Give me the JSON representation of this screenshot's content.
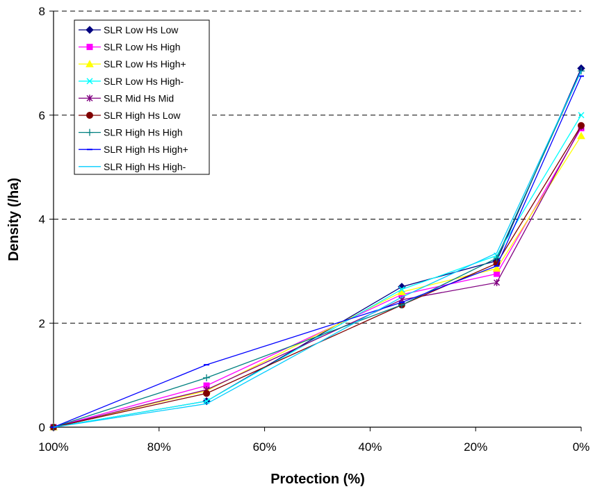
{
  "chart_data": {
    "type": "line",
    "title": "",
    "xlabel": "Protection (%)",
    "ylabel": "Density (/ha)",
    "x": [
      100,
      71,
      34,
      16,
      0
    ],
    "xlim": [
      100,
      0
    ],
    "ylim": [
      0,
      8
    ],
    "x_ticks": [
      100,
      80,
      60,
      40,
      20,
      0
    ],
    "x_tick_labels": [
      "100%",
      "80%",
      "60%",
      "40%",
      "20%",
      "0%"
    ],
    "y_ticks": [
      0,
      2,
      4,
      6,
      8
    ],
    "y_tick_labels": [
      "0",
      "2",
      "4",
      "6",
      "8"
    ],
    "grid": "horizontal-dashed",
    "legend_position": "top-left",
    "series": [
      {
        "name": "SLR Low Hs Low",
        "values": [
          0,
          0.5,
          2.7,
          3.2,
          6.9
        ],
        "color": "#000080",
        "marker": "diamond"
      },
      {
        "name": "SLR Low Hs High",
        "values": [
          0,
          0.8,
          2.55,
          2.95,
          5.75
        ],
        "color": "#FF00FF",
        "marker": "square"
      },
      {
        "name": "SLR Low Hs High+",
        "values": [
          0,
          0.7,
          2.6,
          3.05,
          5.6
        ],
        "color": "#FFFF00",
        "marker": "triangle"
      },
      {
        "name": "SLR Low Hs High-",
        "values": [
          0,
          0.5,
          2.65,
          3.3,
          6.0
        ],
        "color": "#00FFFF",
        "marker": "x"
      },
      {
        "name": "SLR Mid Hs Mid",
        "values": [
          0,
          0.72,
          2.45,
          2.78,
          5.78
        ],
        "color": "#800080",
        "marker": "star"
      },
      {
        "name": "SLR High Hs Low",
        "values": [
          0,
          0.65,
          2.35,
          3.15,
          5.8
        ],
        "color": "#800000",
        "marker": "circle"
      },
      {
        "name": "SLR High Hs High",
        "values": [
          0,
          0.95,
          2.35,
          3.25,
          6.85
        ],
        "color": "#008080",
        "marker": "plus"
      },
      {
        "name": "SLR High Hs High+",
        "values": [
          0,
          1.2,
          2.4,
          3.1,
          6.75
        ],
        "color": "#0000FF",
        "marker": "dash"
      },
      {
        "name": "SLR High Hs High-",
        "values": [
          0,
          0.45,
          2.5,
          3.35,
          6.85
        ],
        "color": "#00CCFF",
        "marker": "none"
      }
    ]
  }
}
